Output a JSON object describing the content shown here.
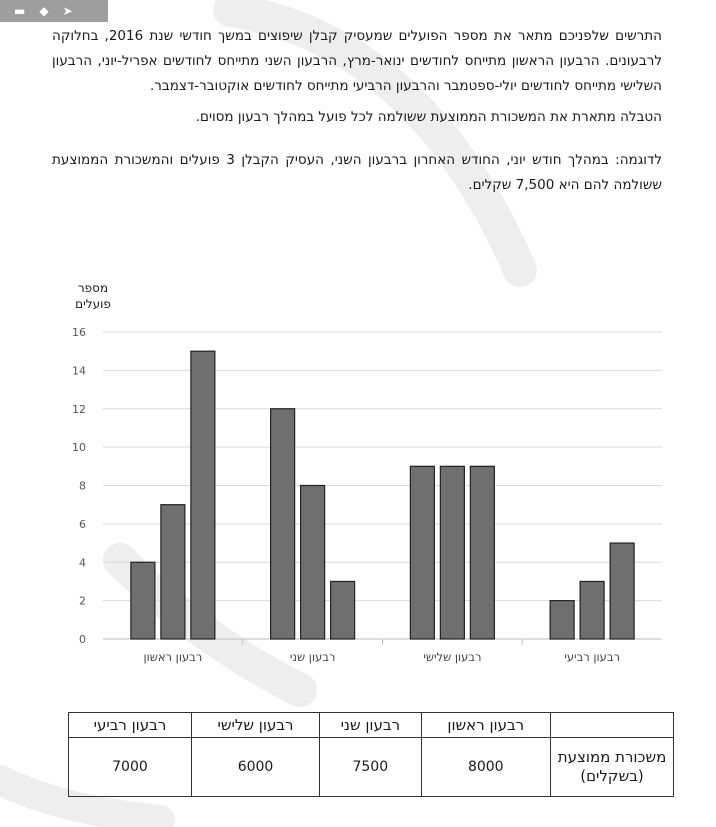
{
  "paragraphs": [
    "התרשים שלפניכם מתאר את מספר הפועלים שמעסיק קבלן שיפוצים במשך חודשי שנת 2016, בחלוקה לרבעונים. הרבעון הראשון מתייחס לחודשים ינואר-מרץ, הרבעון השני מתייחס לחודשים אפריל-יוני, הרבעון השלישי מתייחס לחודשים יולי-ספטמבר והרבעון הרביעי מתייחס לחודשים אוקטובר-דצמבר.",
    "הטבלה מתארת את המשכורת הממוצעת ששולמה לכל פועל במהלך רבעון מסוים.",
    "לדוגמה: במהלך חודש יוני, החודש האחרון ברבעון השני, העסיק הקבלן 3 פועלים והמשכורת הממוצעת ששולמה להם היא 7,500 שקלים."
  ],
  "chart_data": {
    "type": "bar",
    "ylabel_line1": "מספר",
    "ylabel_line2": "פועלים",
    "categories": [
      "רבעון ראשון",
      "רבעון שני",
      "רבעון שלישי",
      "רבעון רביעי"
    ],
    "values": [
      [
        4,
        7,
        15
      ],
      [
        12,
        8,
        3
      ],
      [
        9,
        9,
        9
      ],
      [
        2,
        3,
        5
      ]
    ],
    "ylim": [
      0,
      16
    ],
    "yticks": [
      0,
      2,
      4,
      6,
      8,
      10,
      12,
      14,
      16
    ],
    "grid": true,
    "bar_color": "#6f6f6f"
  },
  "table": {
    "row_header": "משכורת ממוצעת (בשקלים)",
    "columns": [
      "רבעון ראשון",
      "רבעון שני",
      "רבעון שלישי",
      "רבעון רביעי"
    ],
    "values": [
      "8000",
      "7500",
      "6000",
      "7000"
    ]
  },
  "colors": {
    "toolbar": "#9e9e9e",
    "watermark": "#eeeeee"
  }
}
